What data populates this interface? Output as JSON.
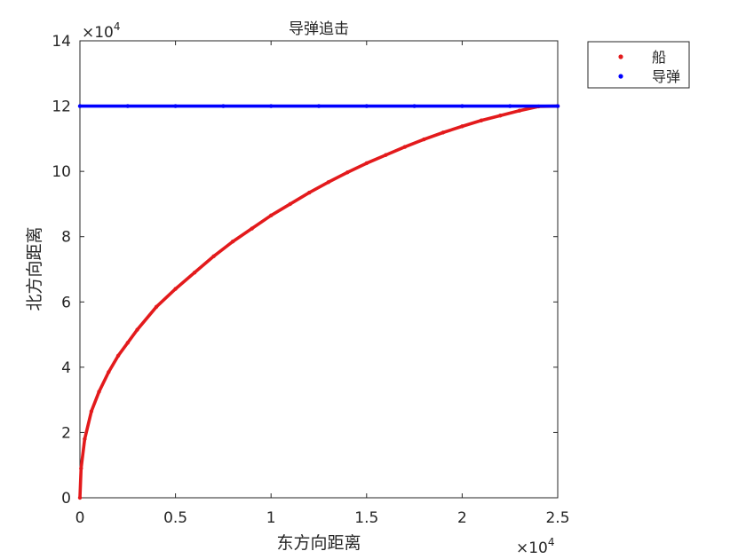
{
  "chart_data": {
    "type": "scatter",
    "title": "导弹追击",
    "xlabel": "东方向距离",
    "ylabel": "北方向距离",
    "x_exponent_label": "×10",
    "x_exponent_power": "4",
    "y_exponent_label": "×10",
    "y_exponent_power": "4",
    "xlim": [
      0,
      25000
    ],
    "ylim": [
      0,
      140000
    ],
    "grid": false,
    "legend_position": "outside-top-right",
    "x_ticks": [
      {
        "value": 0,
        "label": "0"
      },
      {
        "value": 5000,
        "label": "0.5"
      },
      {
        "value": 10000,
        "label": "1"
      },
      {
        "value": 15000,
        "label": "1.5"
      },
      {
        "value": 20000,
        "label": "2"
      },
      {
        "value": 25000,
        "label": "2.5"
      }
    ],
    "y_ticks": [
      {
        "value": 0,
        "label": "0"
      },
      {
        "value": 20000,
        "label": "2"
      },
      {
        "value": 40000,
        "label": "4"
      },
      {
        "value": 60000,
        "label": "6"
      },
      {
        "value": 80000,
        "label": "8"
      },
      {
        "value": 100000,
        "label": "10"
      },
      {
        "value": 120000,
        "label": "12"
      },
      {
        "value": 140000,
        "label": "14"
      }
    ],
    "series": [
      {
        "name": "船",
        "color": "#e31a1c",
        "marker": "dot",
        "x": [
          0,
          60,
          250,
          600,
          1000,
          1500,
          2000,
          2500,
          3000,
          4000,
          5000,
          6000,
          7000,
          8000,
          9000,
          10000,
          11000,
          12000,
          13000,
          14000,
          15000,
          16000,
          17000,
          18000,
          19000,
          20000,
          21000,
          22000,
          23000,
          24000,
          25000
        ],
        "y": [
          0,
          9000,
          18000,
          26500,
          32500,
          38500,
          43500,
          47500,
          51500,
          58500,
          64000,
          69000,
          74000,
          78500,
          82500,
          86500,
          90000,
          93500,
          96700,
          99700,
          102500,
          105000,
          107500,
          109800,
          111900,
          113800,
          115600,
          117100,
          118600,
          119900,
          120000
        ]
      },
      {
        "name": "导弹",
        "color": "#0000ff",
        "marker": "dot",
        "x": [
          0,
          2500,
          5000,
          7500,
          10000,
          12500,
          15000,
          17500,
          20000,
          22500,
          25000
        ],
        "y": [
          120000,
          120000,
          120000,
          120000,
          120000,
          120000,
          120000,
          120000,
          120000,
          120000,
          120000
        ]
      }
    ]
  }
}
